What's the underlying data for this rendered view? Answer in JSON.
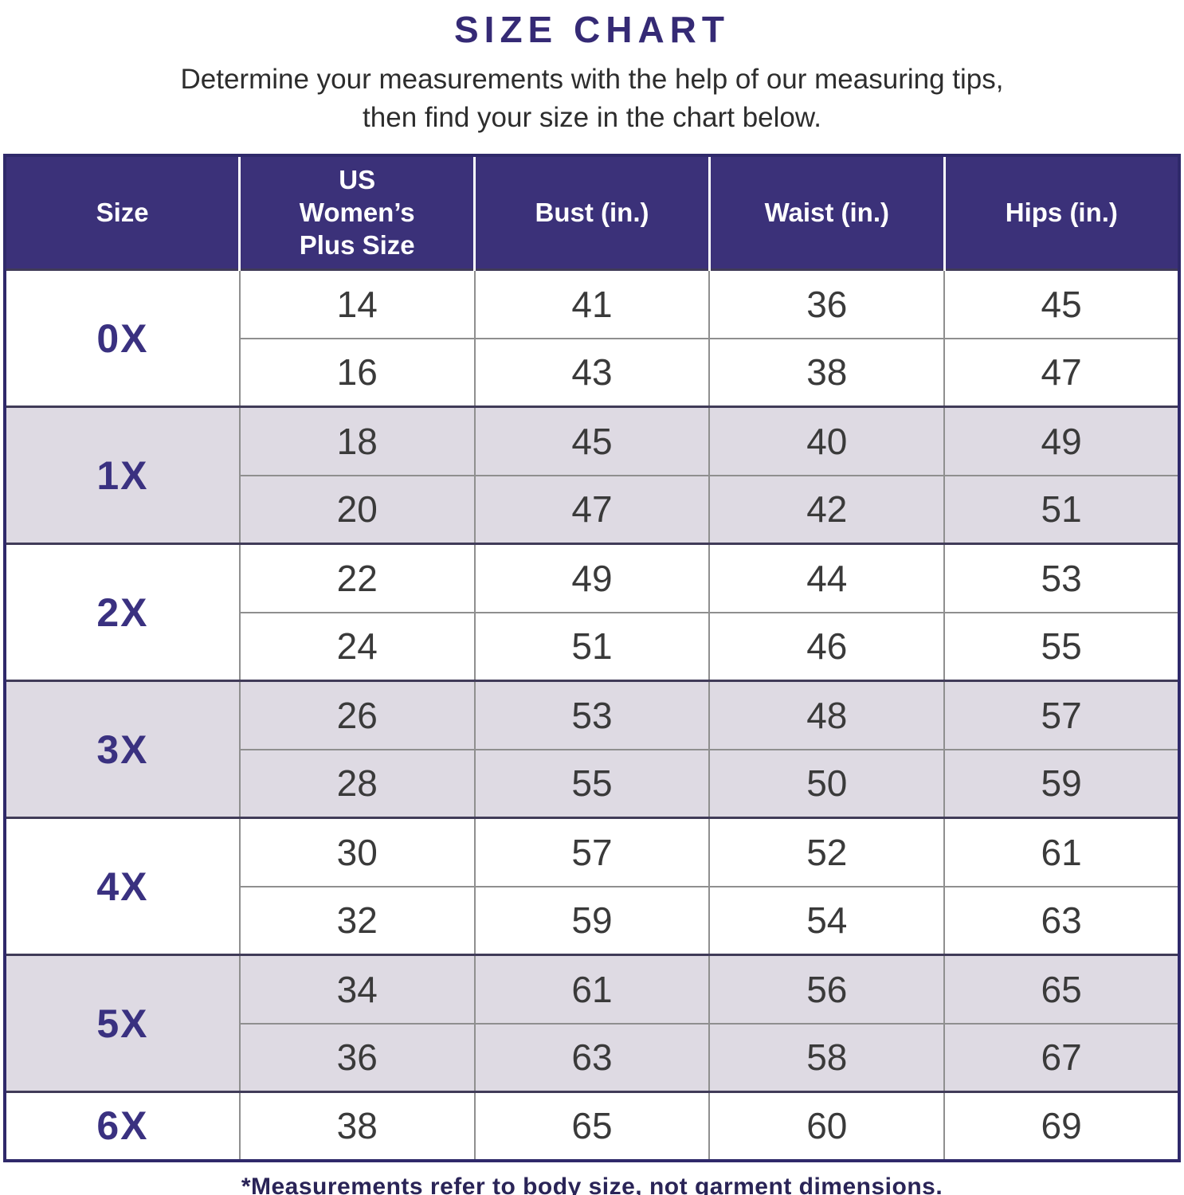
{
  "page": {
    "title": "SIZE CHART",
    "subtitle_line1": "Determine your measurements with the help of our measuring tips,",
    "subtitle_line2": "then find your size in the chart below.",
    "footnote": "*Measurements refer to body size, not garment dimensions."
  },
  "colors": {
    "header_bg": "#3b3179",
    "accent_navy": "#352a75",
    "size_label_navy": "#3a3180",
    "row_bg_white": "#ffffff",
    "row_bg_lavender": "#dedae3",
    "group_border": "#403b58",
    "grid_line": "#8f8f8f",
    "value_text": "#3a3a3a",
    "outer_border": "#2f296a"
  },
  "chart_data": {
    "type": "table",
    "title": "SIZE CHART",
    "columns": [
      "Size",
      "US Women’s Plus Size",
      "Bust (in.)",
      "Waist (in.)",
      "Hips (in.)"
    ],
    "groups": [
      {
        "size": "0X",
        "shaded": false,
        "rows": [
          [
            14,
            41,
            36,
            45
          ],
          [
            16,
            43,
            38,
            47
          ]
        ]
      },
      {
        "size": "1X",
        "shaded": true,
        "rows": [
          [
            18,
            45,
            40,
            49
          ],
          [
            20,
            47,
            42,
            51
          ]
        ]
      },
      {
        "size": "2X",
        "shaded": false,
        "rows": [
          [
            22,
            49,
            44,
            53
          ],
          [
            24,
            51,
            46,
            55
          ]
        ]
      },
      {
        "size": "3X",
        "shaded": true,
        "rows": [
          [
            26,
            53,
            48,
            57
          ],
          [
            28,
            55,
            50,
            59
          ]
        ]
      },
      {
        "size": "4X",
        "shaded": false,
        "rows": [
          [
            30,
            57,
            52,
            61
          ],
          [
            32,
            59,
            54,
            63
          ]
        ]
      },
      {
        "size": "5X",
        "shaded": true,
        "rows": [
          [
            34,
            61,
            56,
            65
          ],
          [
            36,
            63,
            58,
            67
          ]
        ]
      },
      {
        "size": "6X",
        "shaded": false,
        "rows": [
          [
            38,
            65,
            60,
            69
          ]
        ]
      }
    ],
    "layout": {
      "grid": true,
      "alternating_group_shading": true,
      "legend": "none"
    }
  }
}
